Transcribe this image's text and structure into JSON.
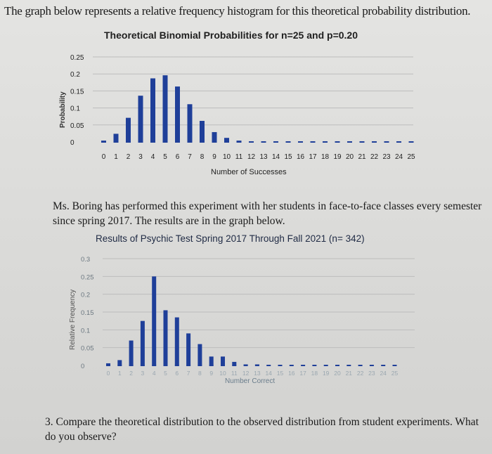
{
  "intro_text": "The graph below represents a relative frequency histogram for this theoretical probability distribution.",
  "paragraph": "Ms. Boring has performed this experiment with her students in face-to-face classes every semester since spring 2017. The results are in the graph below.",
  "question": "3. Compare the theoretical distribution to the observed distribution from student experiments. What do you observe?",
  "colors": {
    "bar": "#1f3f99",
    "grid": "#bdbdbd"
  },
  "chart_data": [
    {
      "type": "bar",
      "title": "Theoretical Binomial Probabilities for n=25 and p=0.20",
      "xlabel": "Number of Successes",
      "ylabel": "Probability",
      "ylim": [
        0,
        0.25
      ],
      "yticks": [
        "0",
        "0.05",
        "0.1",
        "0.15",
        "0.2",
        "0.25"
      ],
      "grid": true,
      "categories": [
        "0",
        "1",
        "2",
        "3",
        "4",
        "5",
        "6",
        "7",
        "8",
        "9",
        "10",
        "11",
        "12",
        "13",
        "14",
        "15",
        "16",
        "17",
        "18",
        "19",
        "20",
        "21",
        "22",
        "23",
        "24",
        "25"
      ],
      "values": [
        0.004,
        0.024,
        0.071,
        0.136,
        0.187,
        0.196,
        0.163,
        0.111,
        0.062,
        0.029,
        0.012,
        0.004,
        0.001,
        0,
        0,
        0,
        0,
        0,
        0,
        0,
        0,
        0,
        0,
        0,
        0,
        0
      ]
    },
    {
      "type": "bar",
      "title": "Results of Psychic Test Spring 2017 Through Fall 2021 (n= 342)",
      "xlabel": "Number Correct",
      "ylabel": "Relative Frequency",
      "ylim": [
        0,
        0.3
      ],
      "yticks": [
        "0",
        "0.05",
        "0.1",
        "0.15",
        "0.2",
        "0.25",
        "0.3"
      ],
      "grid": true,
      "categories": [
        "0",
        "1",
        "2",
        "3",
        "4",
        "5",
        "6",
        "7",
        "8",
        "9",
        "10",
        "11",
        "12",
        "13",
        "14",
        "15",
        "16",
        "17",
        "18",
        "19",
        "20",
        "21",
        "22",
        "23",
        "24",
        "25"
      ],
      "values": [
        0.006,
        0.015,
        0.07,
        0.125,
        0.25,
        0.155,
        0.135,
        0.09,
        0.06,
        0.025,
        0.025,
        0.01,
        0.003,
        0.003,
        0,
        0,
        0,
        0,
        0,
        0,
        0,
        0,
        0,
        0,
        0,
        0
      ]
    }
  ]
}
